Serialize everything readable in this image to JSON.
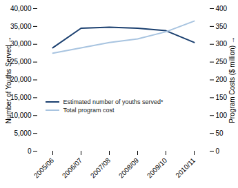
{
  "chart_data": {
    "type": "line",
    "categories": [
      "2005/06",
      "2006/07",
      "2007/08",
      "2008/09",
      "2009/10",
      "2010/11"
    ],
    "series": [
      {
        "name": "Estimated number of youths served*",
        "color": "#1a3f6f",
        "values": [
          29000,
          34500,
          34800,
          34500,
          33800,
          30500
        ]
      },
      {
        "name": "Total program cost",
        "color": "#a8c4e0",
        "values": [
          275,
          290,
          305,
          315,
          335,
          365
        ],
        "axis": "y2"
      }
    ],
    "ylabel": "Number of Youths Served",
    "y2label": "Program Costs ($ million)",
    "ylim": [
      0,
      40000
    ],
    "yticks": [
      0,
      {
        "value": 5000,
        "label": "5,000"
      },
      {
        "value": 10000,
        "label": "10,000"
      },
      {
        "value": 15000,
        "label": "15,000"
      },
      {
        "value": 20000,
        "label": "20,000"
      },
      {
        "value": 25000,
        "label": "25,000"
      },
      {
        "value": 30000,
        "label": "30,000"
      },
      {
        "value": 35000,
        "label": "35,000"
      },
      {
        "value": 40000,
        "label": "40,000"
      }
    ],
    "y2lim": [
      0,
      400
    ],
    "y2ticks": [
      0,
      50,
      100,
      150,
      200,
      250,
      300,
      350,
      400
    ],
    "legend": "lower left"
  }
}
